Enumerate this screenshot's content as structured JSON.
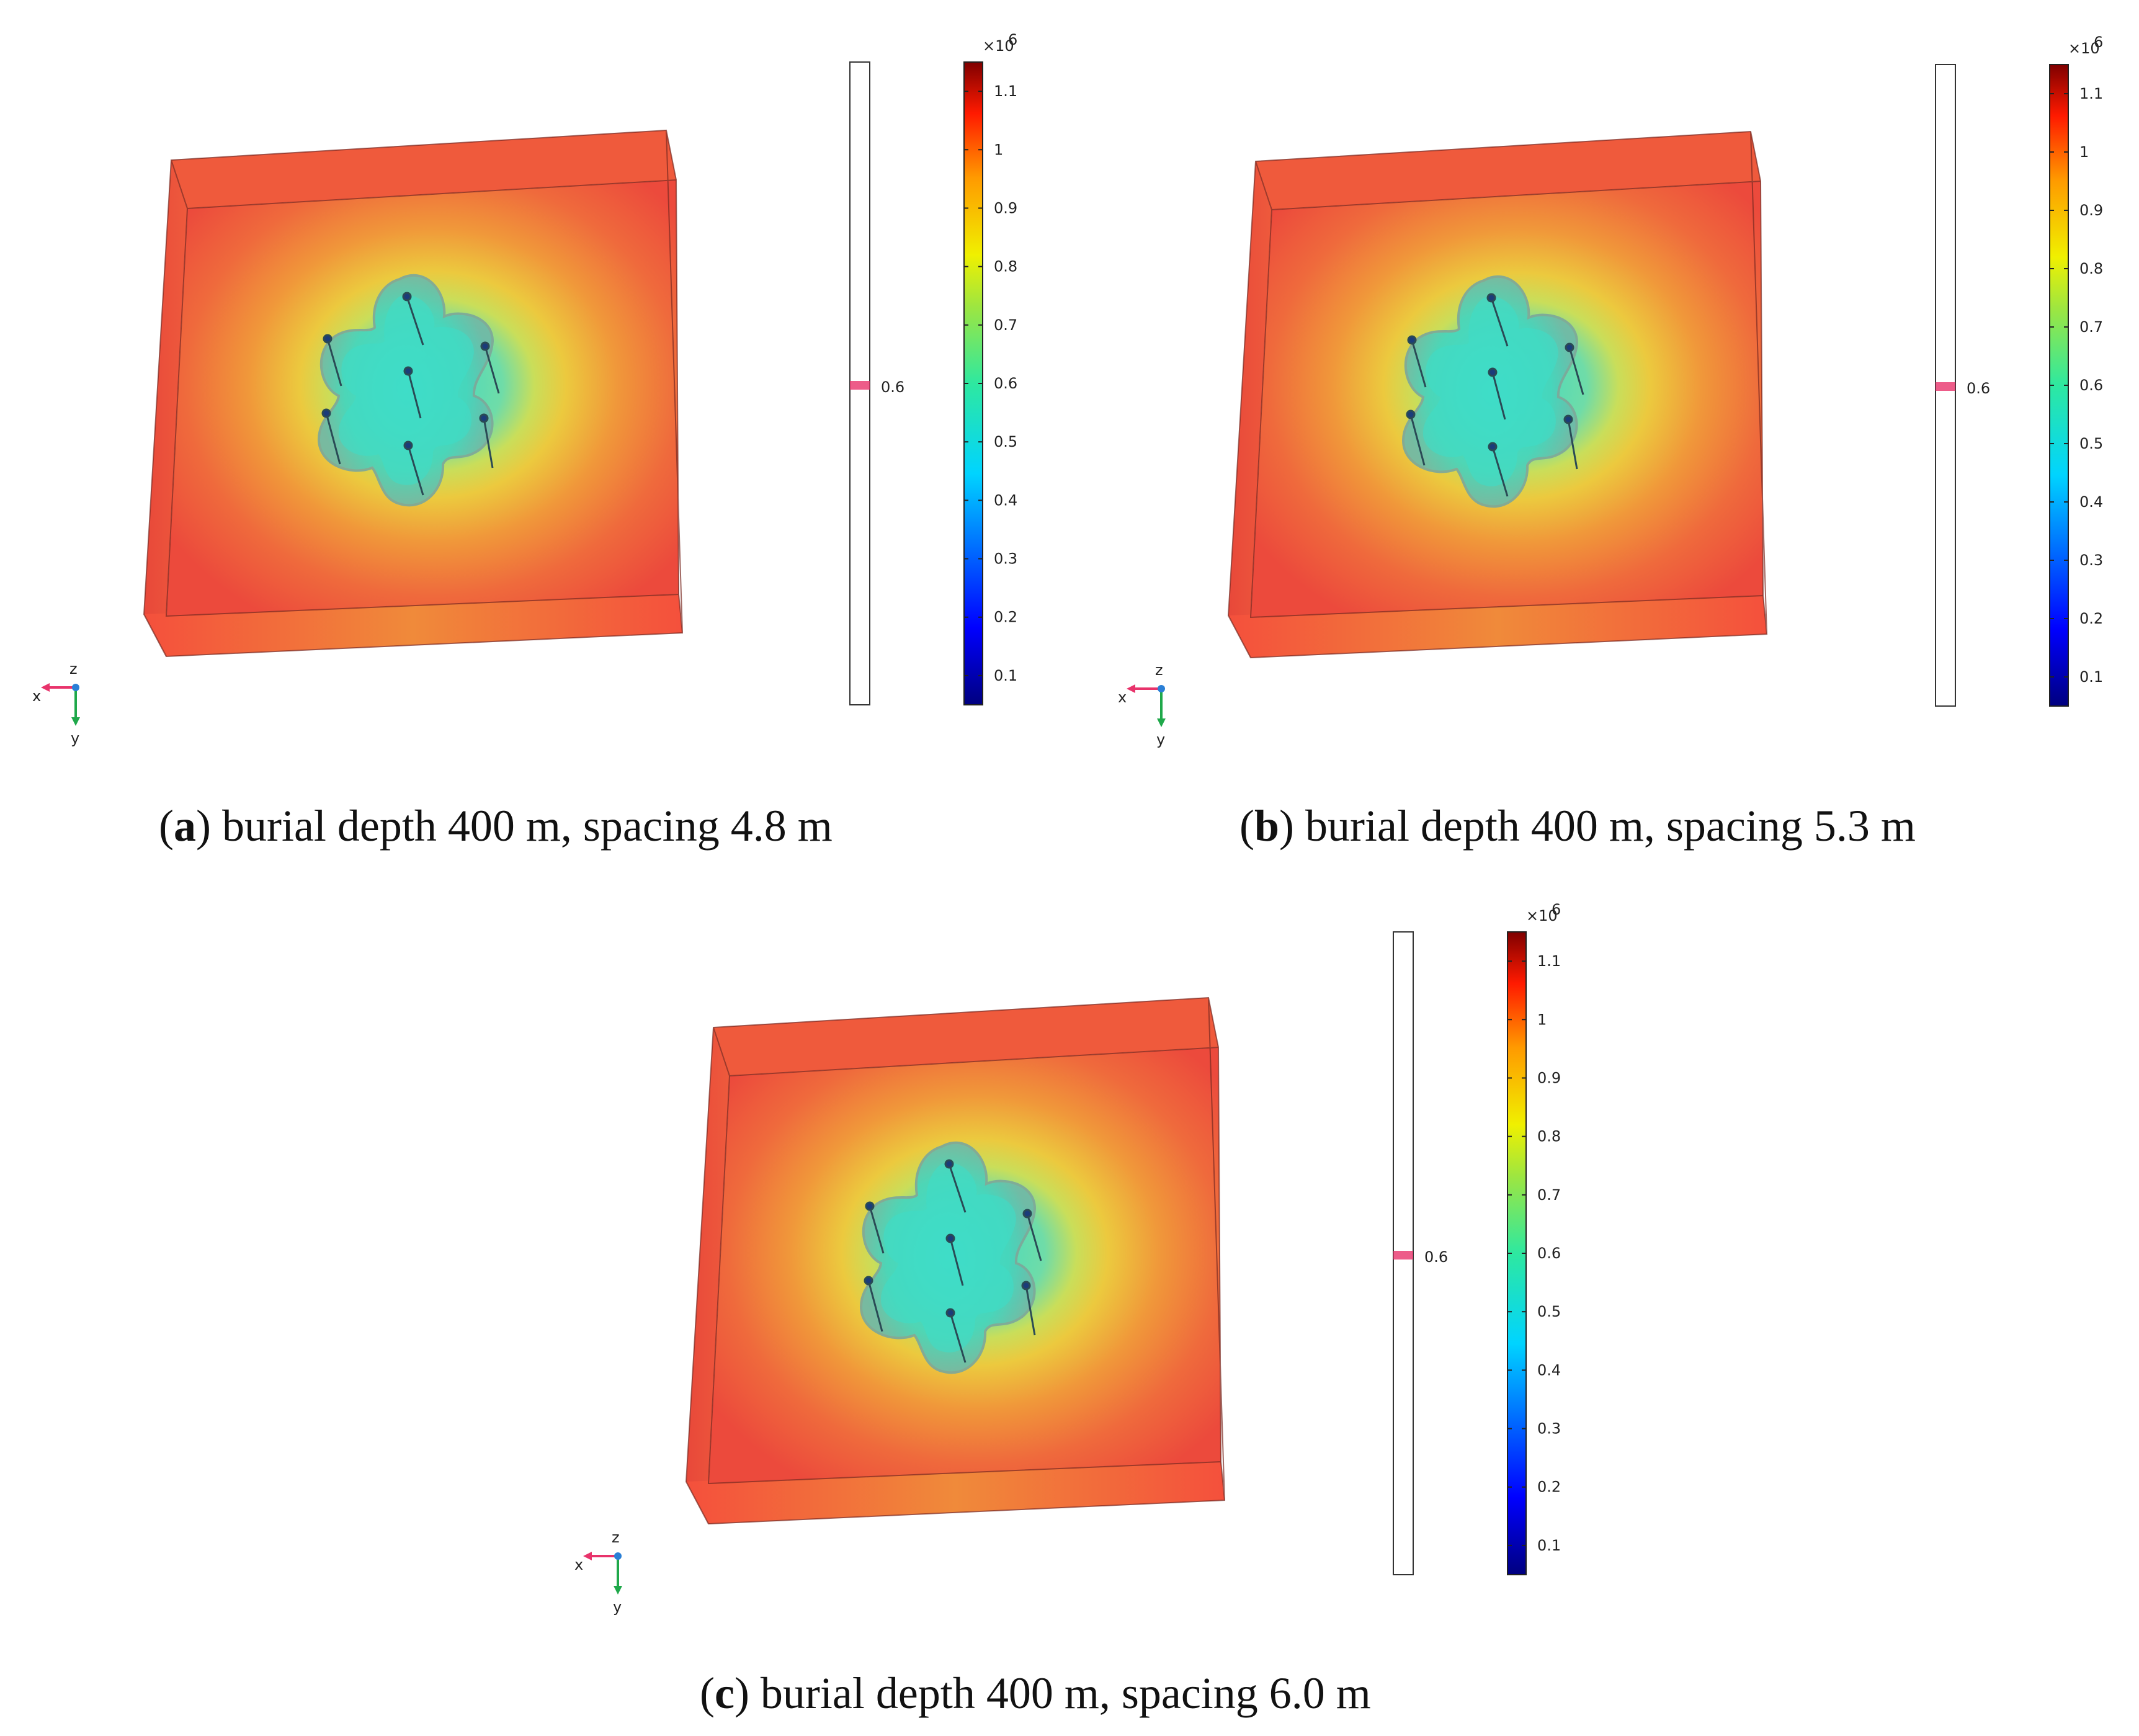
{
  "panels": [
    {
      "id": "a",
      "letter": "a",
      "caption": ") burial depth 400 m, spacing 4.8 m",
      "spacing_m": 4.8
    },
    {
      "id": "b",
      "letter": "b",
      "caption": ") burial depth 400 m, spacing 5.3 m",
      "spacing_m": 5.3
    },
    {
      "id": "c",
      "letter": "c",
      "caption": ") burial depth 400 m, spacing 6.0 m",
      "spacing_m": 6.0
    }
  ],
  "colorbar": {
    "exponent_label": "×10",
    "exponent_power": "6",
    "ticks": [
      "0.1",
      "0.2",
      "0.3",
      "0.4",
      "0.5",
      "0.6",
      "0.7",
      "0.8",
      "0.9",
      "1",
      "1.1"
    ],
    "min": 0.05,
    "max": 1.15
  },
  "isosurface_bar": {
    "marker_label": "0.6",
    "value": 0.6
  },
  "axes": {
    "x": "x",
    "y": "y",
    "z": "z"
  },
  "colors": {
    "high": "#f04a3c",
    "mid": "#f08a3a",
    "low_core": "#3ad6c0",
    "axis_x": "#e8336b",
    "axis_y": "#1fa84a",
    "axis_z": "#2a7fd6",
    "marker": "#e8336b"
  }
}
